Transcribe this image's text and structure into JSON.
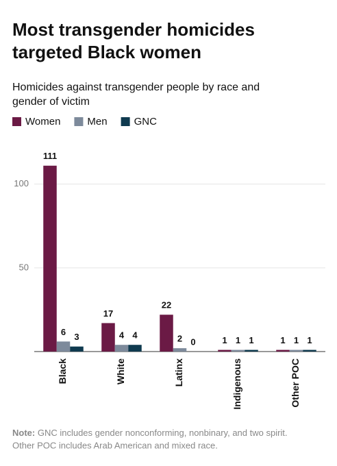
{
  "chart_data": {
    "type": "bar",
    "title": [
      "Most transgender homicides",
      "targeted Black women"
    ],
    "subtitle": [
      "Homicides against transgender people by race and",
      "gender of victim"
    ],
    "categories": [
      "Black",
      "White",
      "Latinx",
      "Indigenous",
      "Other POC"
    ],
    "series": [
      {
        "name": "Women",
        "color": "#6b1a45",
        "values": [
          111,
          17,
          22,
          1,
          1
        ]
      },
      {
        "name": "Men",
        "color": "#7d8a9b",
        "values": [
          6,
          4,
          2,
          1,
          1
        ]
      },
      {
        "name": "GNC",
        "color": "#0f3a4f",
        "values": [
          3,
          4,
          0,
          1,
          1
        ]
      }
    ],
    "ylim": [
      0,
      115
    ],
    "yticks": [
      50,
      100
    ],
    "grid": true,
    "note_label": "Note:",
    "note": [
      "GNC includes gender nonconforming, nonbinary, and two spirit.",
      "Other POC includes Arab American and mixed race."
    ]
  }
}
